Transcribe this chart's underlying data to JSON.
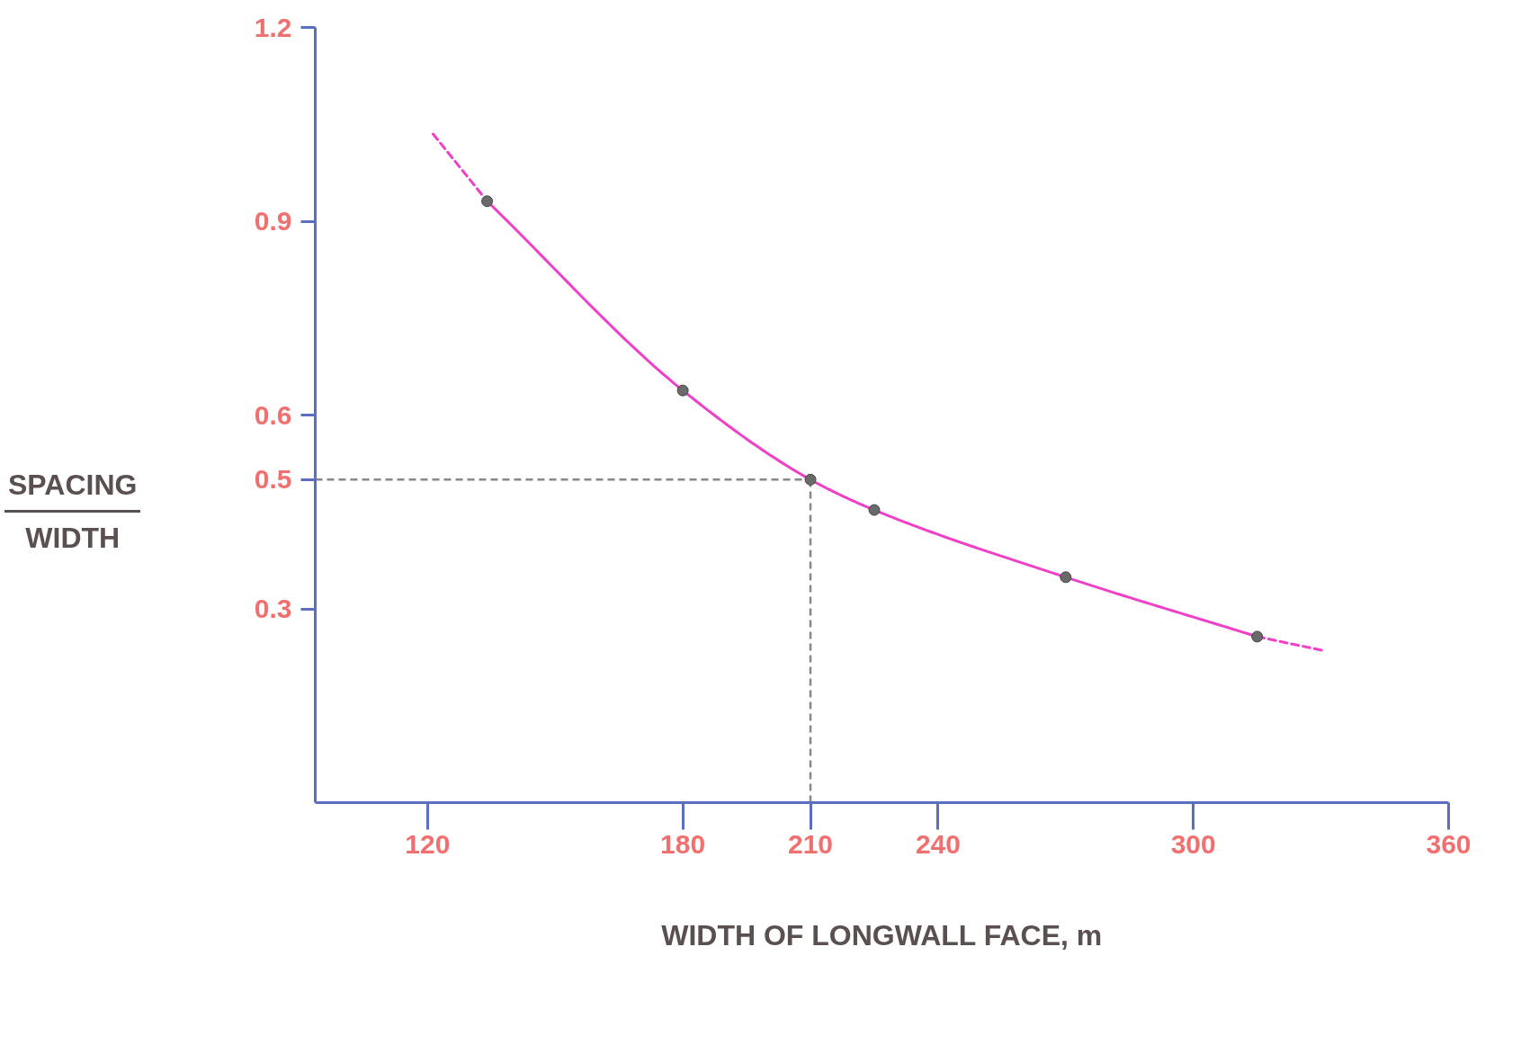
{
  "chart_data": {
    "type": "line",
    "xlabel": "WIDTH OF LONGWALL FACE, m",
    "ylabel": "SPACING\nWIDTH",
    "xlim": [
      93.6,
      360
    ],
    "ylim": [
      0,
      1.2
    ],
    "xticks": [
      120,
      180,
      210,
      240,
      300,
      360
    ],
    "yticks": [
      0.3,
      0.5,
      0.6,
      0.9,
      1.2
    ],
    "grid": false,
    "series": [
      {
        "color": "#f040c8",
        "line_style": "solid",
        "marker": "none",
        "x": [
          134,
          180,
          210,
          225,
          270,
          315
        ],
        "values": [
          0.931,
          0.638,
          0.5,
          0.453,
          0.349,
          0.257
        ]
      },
      {
        "color": "#f040c8",
        "line_style": "dashed",
        "marker": "none",
        "x": [
          121.3,
          134
        ],
        "values": [
          1.035,
          0.931
        ]
      },
      {
        "color": "#f040c8",
        "line_style": "dashed",
        "marker": "none",
        "x": [
          315,
          330.8
        ],
        "values": [
          0.257,
          0.235
        ]
      },
      {
        "type": "scatter",
        "color": "#6a6a6a",
        "marker": "circle",
        "x": [
          134,
          180,
          210,
          225,
          270,
          315
        ],
        "values": [
          0.931,
          0.638,
          0.5,
          0.453,
          0.349,
          0.257
        ]
      }
    ],
    "ref_lines": [
      {
        "axis": "y",
        "value": 0.5,
        "color": "#888888",
        "line_style": "dashed"
      },
      {
        "axis": "x",
        "value": 210,
        "color": "#888888",
        "line_style": "dashed"
      }
    ]
  }
}
